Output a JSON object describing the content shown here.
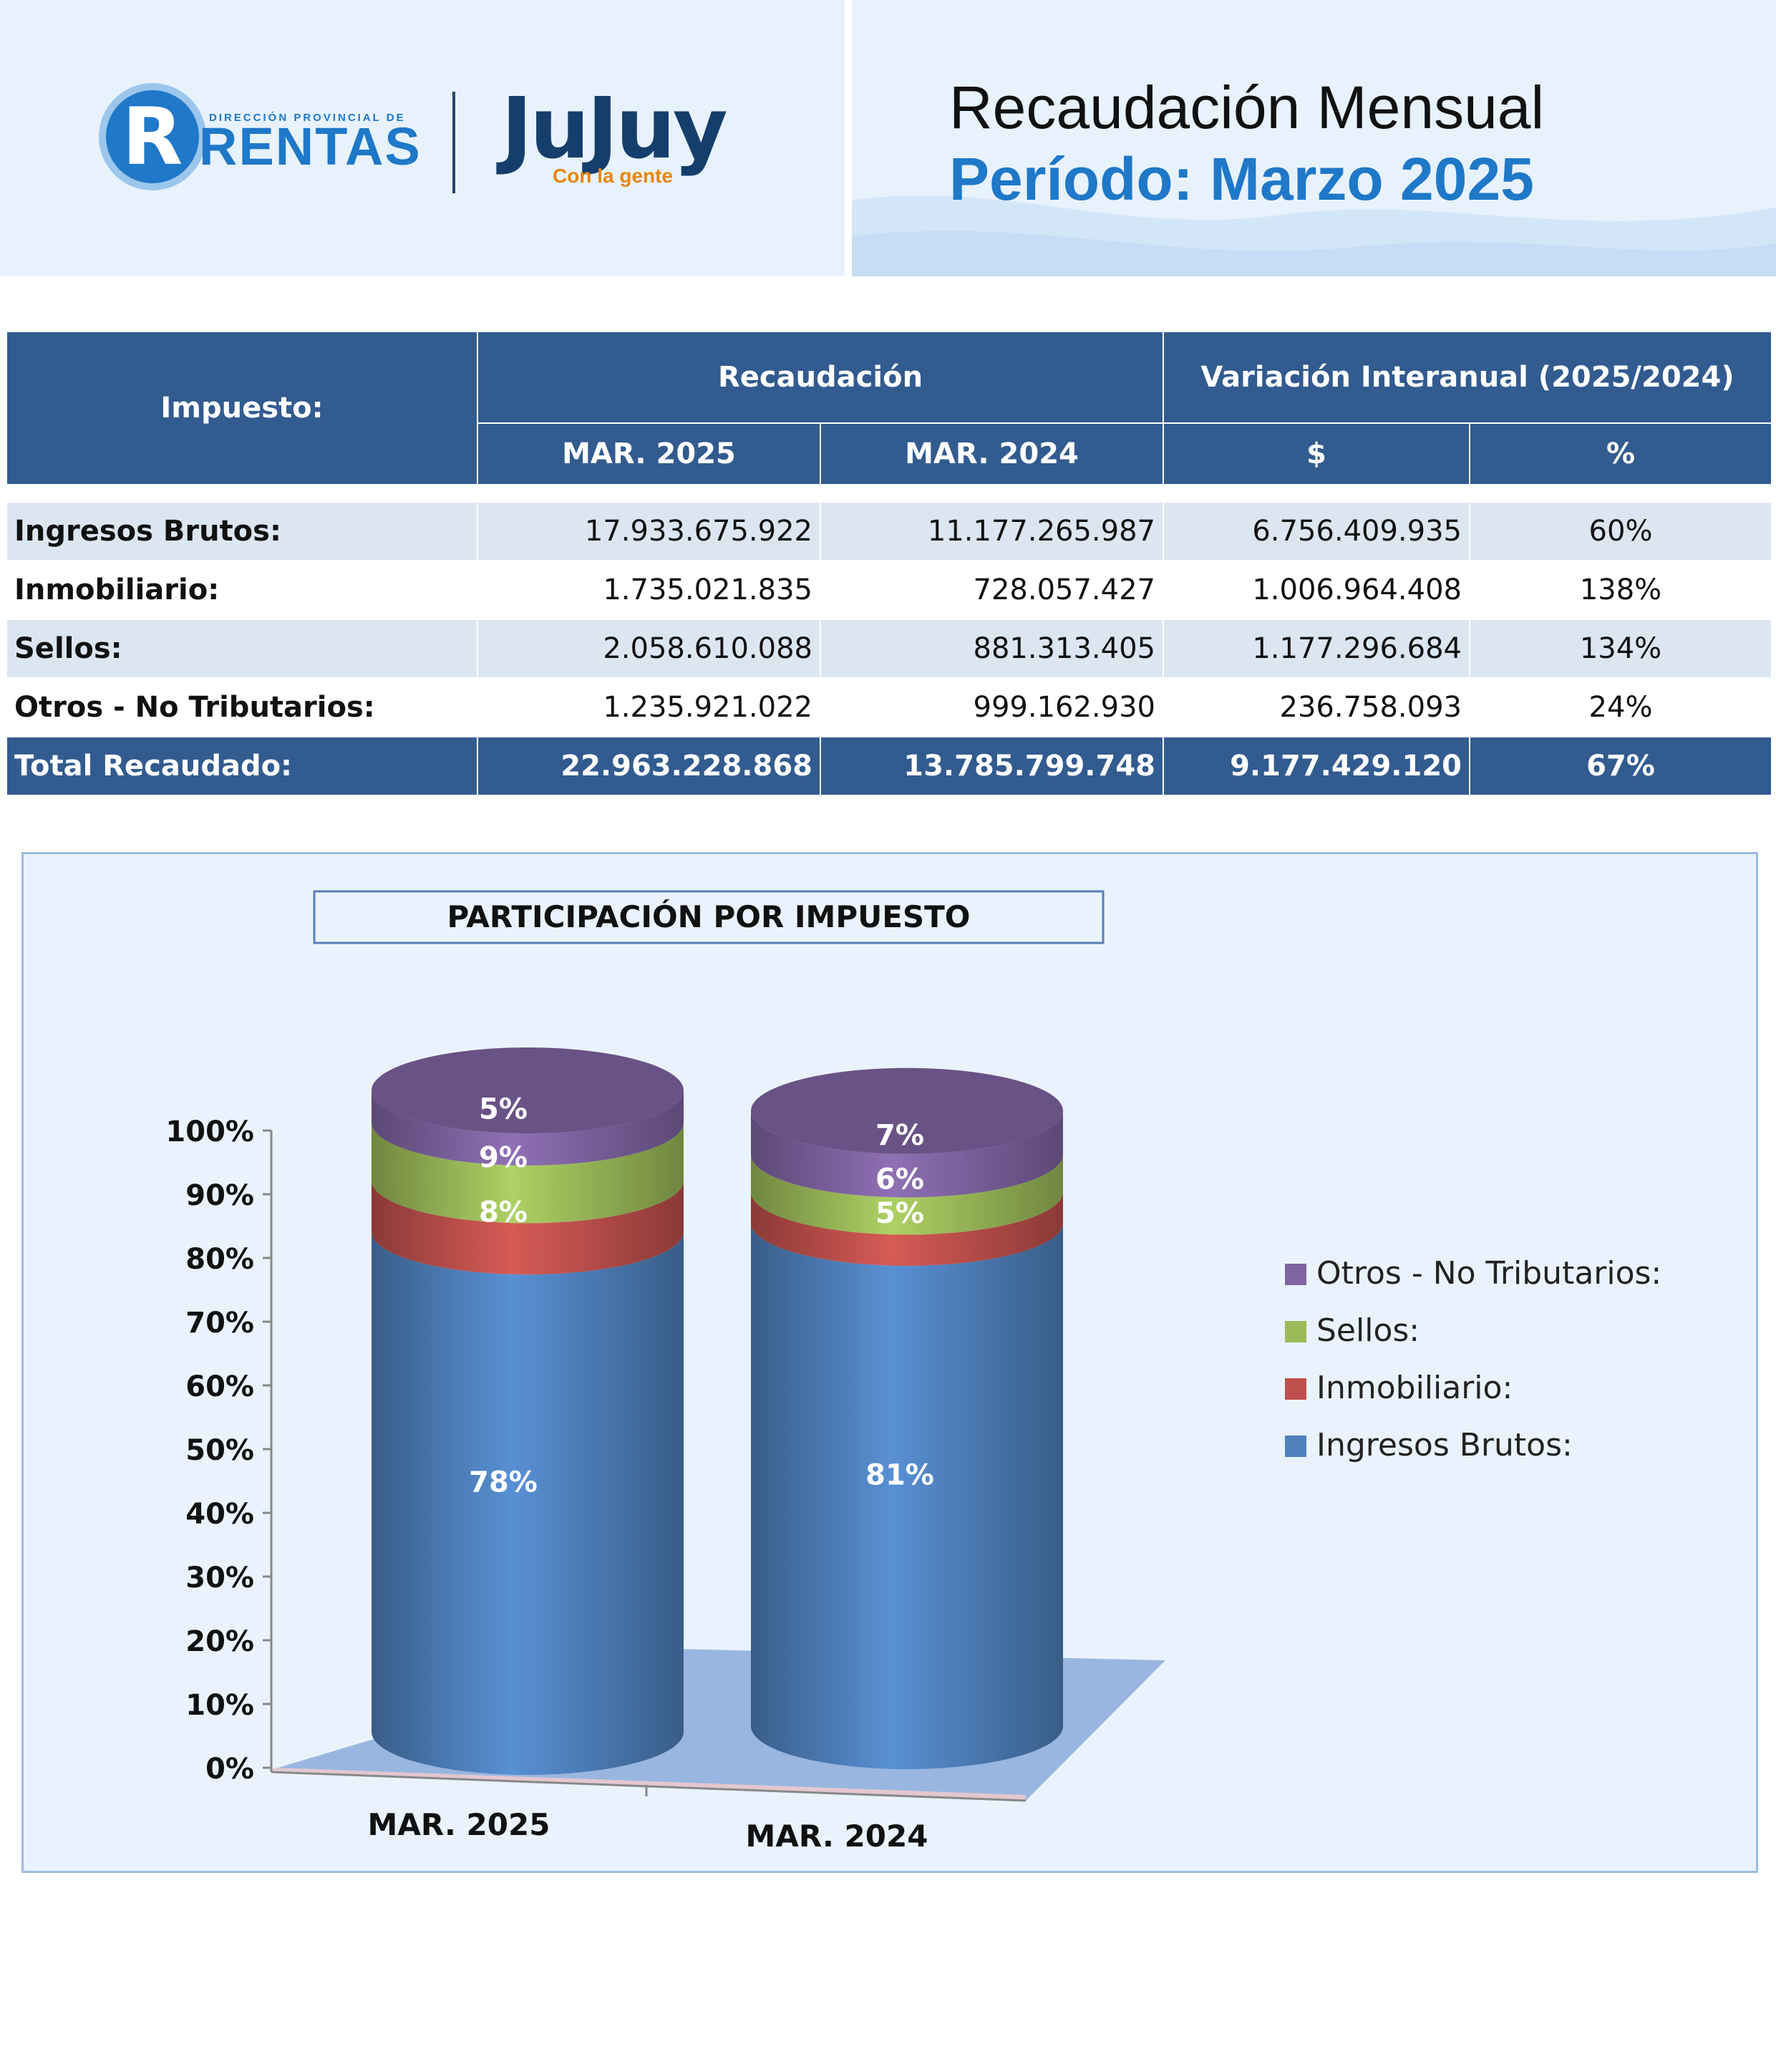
{
  "header": {
    "logo_small_text": "DIRECCIÓN PROVINCIAL DE",
    "logo_main_text": "RENTAS",
    "logo_letter": "R",
    "jujuy_text": "JuJuy",
    "jujuy_tagline": "Con la gente",
    "title": "Recaudación Mensual",
    "subtitle": "Período: Marzo 2025"
  },
  "table": {
    "col_impuesto": "Impuesto:",
    "col_recaudacion": "Recaudación",
    "col_variacion": "Variación Interanual (2025/2024)",
    "sub_2025": "MAR. 2025",
    "sub_2024": "MAR. 2024",
    "sub_dollar": "$",
    "sub_pct": "%",
    "rows": [
      {
        "impuesto": "Ingresos Brutos:",
        "v2025": "17.933.675.922",
        "v2024": "11.177.265.987",
        "var": "6.756.409.935",
        "pct": "60%"
      },
      {
        "impuesto": "Inmobiliario:",
        "v2025": "1.735.021.835",
        "v2024": "728.057.427",
        "var": "1.006.964.408",
        "pct": "138%"
      },
      {
        "impuesto": "Sellos:",
        "v2025": "2.058.610.088",
        "v2024": "881.313.405",
        "var": "1.177.296.684",
        "pct": "134%"
      },
      {
        "impuesto": "Otros - No Tributarios:",
        "v2025": "1.235.921.022",
        "v2024": "999.162.930",
        "var": "236.758.093",
        "pct": "24%"
      }
    ],
    "total": {
      "impuesto": "Total Recaudado:",
      "v2025": "22.963.228.868",
      "v2024": "13.785.799.748",
      "var": "9.177.429.120",
      "pct": "67%"
    }
  },
  "chart_data": {
    "type": "bar",
    "stacked": true,
    "title": "PARTICIPACIÓN POR IMPUESTO",
    "categories": [
      "MAR. 2025",
      "MAR. 2024"
    ],
    "ylim": [
      0,
      100
    ],
    "yticks": [
      "0%",
      "10%",
      "20%",
      "30%",
      "40%",
      "50%",
      "60%",
      "70%",
      "80%",
      "90%",
      "100%"
    ],
    "legend_position": "right",
    "series": [
      {
        "name": "Ingresos Brutos:",
        "values": [
          78,
          81
        ],
        "labels": [
          "78%",
          "81%"
        ],
        "color": "#4f81bd"
      },
      {
        "name": "Inmobiliario:",
        "values": [
          8,
          5
        ],
        "labels": [
          "8%",
          "5%"
        ],
        "color": "#c0504d"
      },
      {
        "name": "Sellos:",
        "values": [
          9,
          6
        ],
        "labels": [
          "9%",
          "6%"
        ],
        "color": "#9bbb59"
      },
      {
        "name": "Otros - No Tributarios:",
        "values": [
          5,
          7
        ],
        "labels": [
          "5%",
          "7%"
        ],
        "color": "#8064a2"
      }
    ]
  }
}
